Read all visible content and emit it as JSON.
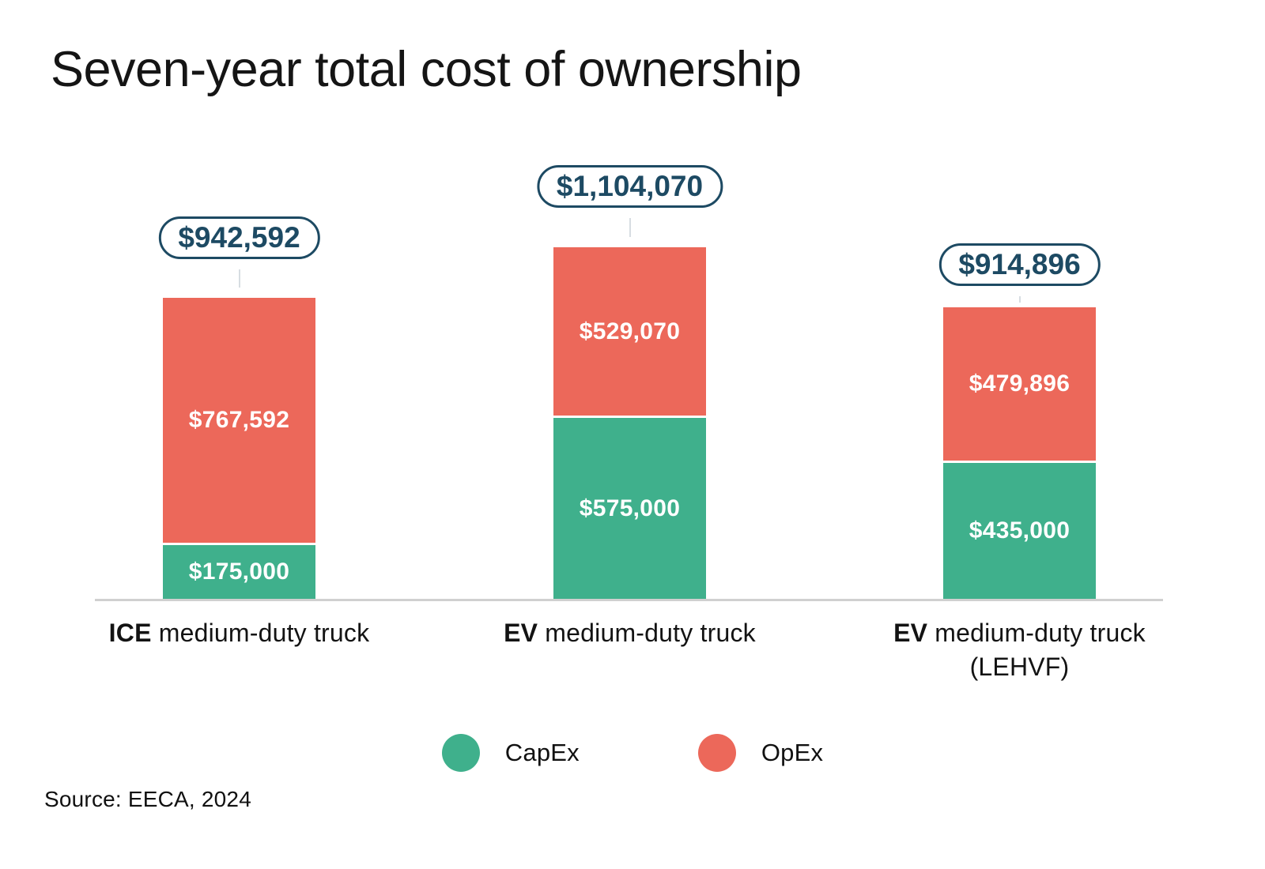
{
  "title": "Seven-year total cost of ownership",
  "source": "Source: EECA, 2024",
  "colors": {
    "capex": "#3fb08c",
    "opex": "#ec685a",
    "badge_navy": "#1d4a63",
    "axis_line": "#d0d0d0",
    "connector": "#d7dde2",
    "bar_label_text": "#ffffff",
    "background": "#ffffff",
    "text": "#131313"
  },
  "legend": {
    "position": "bottom",
    "items": [
      {
        "label": "CapEx",
        "series": "capex"
      },
      {
        "label": "OpEx",
        "series": "opex"
      }
    ]
  },
  "chart_data": {
    "type": "bar",
    "stacked": true,
    "title": "Seven-year total cost of ownership",
    "categories": [
      "ICE medium-duty truck",
      "EV medium-duty truck",
      "EV medium-duty truck (LEHVF)"
    ],
    "series": [
      {
        "name": "CapEx",
        "color": "#3fb08c",
        "values": [
          175000,
          575000,
          435000
        ]
      },
      {
        "name": "OpEx",
        "color": "#ec685a",
        "values": [
          767592,
          529070,
          479896
        ]
      }
    ],
    "totals": [
      942592,
      1104070,
      914896
    ],
    "total_labels": [
      "$942,592",
      "$1,104,070",
      "$914,896"
    ],
    "ylim": [
      0,
      1104070
    ],
    "grid": false,
    "legend_position": "bottom",
    "bars": [
      {
        "category_bold": "ICE",
        "category_rest": " medium-duty truck",
        "total_label": "$942,592",
        "segments": [
          {
            "series": "opex",
            "name": "OpEx",
            "label": "$767,592",
            "value": 767592
          },
          {
            "series": "capex",
            "name": "CapEx",
            "label": "$175,000",
            "value": 175000
          }
        ]
      },
      {
        "category_bold": "EV",
        "category_rest": " medium-duty truck",
        "total_label": "$1,104,070",
        "segments": [
          {
            "series": "opex",
            "name": "OpEx",
            "label": "$529,070",
            "value": 529070
          },
          {
            "series": "capex",
            "name": "CapEx",
            "label": "$575,000",
            "value": 575000
          }
        ]
      },
      {
        "category_bold": "EV",
        "category_rest": " medium-duty truck (LEHVF)",
        "total_label": "$914,896",
        "segments": [
          {
            "series": "opex",
            "name": "OpEx",
            "label": "$479,896",
            "value": 479896
          },
          {
            "series": "capex",
            "name": "CapEx",
            "label": "$435,000",
            "value": 435000
          }
        ]
      }
    ]
  }
}
